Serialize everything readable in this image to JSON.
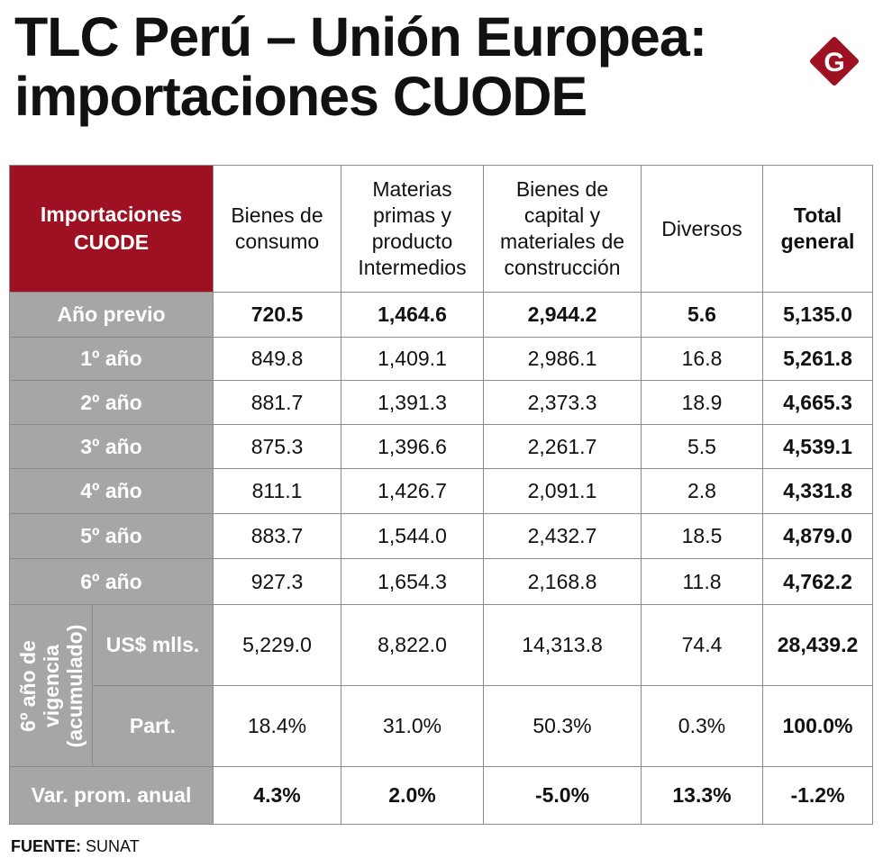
{
  "title": {
    "line1": "TLC Perú – Unión Europea:",
    "line2": "importaciones CUODE"
  },
  "logo": {
    "letter": "G",
    "color": "#9e1122",
    "icon": "brand-g-diamond-icon"
  },
  "colors": {
    "header_red": "#9e1122",
    "row_gray": "#a6a6a6",
    "border": "#8a8a8a"
  },
  "table": {
    "corner_label": [
      "Importaciones",
      "CUODE"
    ],
    "columns": [
      {
        "lines": [
          "Bienes de",
          "consumo"
        ]
      },
      {
        "lines": [
          "Materias",
          "primas y",
          "producto",
          "Intermedios"
        ]
      },
      {
        "lines": [
          "Bienes de",
          "capital y",
          "materiales de",
          "construcción"
        ]
      },
      {
        "lines": [
          "Diversos"
        ]
      },
      {
        "lines": [
          "Total",
          "general"
        ]
      }
    ],
    "rows": [
      {
        "label": "Año previo",
        "values": [
          "720.5",
          "1,464.6",
          "2,944.2",
          "5.6",
          "5,135.0"
        ]
      },
      {
        "label": "1º año",
        "values": [
          "849.8",
          "1,409.1",
          "2,986.1",
          "16.8",
          "5,261.8"
        ]
      },
      {
        "label": "2º año",
        "values": [
          "881.7",
          "1,391.3",
          "2,373.3",
          "18.9",
          "4,665.3"
        ]
      },
      {
        "label": "3º año",
        "values": [
          "875.3",
          "1,396.6",
          "2,261.7",
          "5.5",
          "4,539.1"
        ]
      },
      {
        "label": "4º año",
        "values": [
          "811.1",
          "1,426.7",
          "2,091.1",
          "2.8",
          "4,331.8"
        ]
      },
      {
        "label": "5º año",
        "values": [
          "883.7",
          "1,544.0",
          "2,432.7",
          "18.5",
          "4,879.0"
        ]
      },
      {
        "label": "6º año",
        "values": [
          "927.3",
          "1,654.3",
          "2,168.8",
          "11.8",
          "4,762.2"
        ]
      }
    ],
    "group": {
      "label_lines": [
        "6º año de",
        "vigencia",
        "(acumulado)"
      ],
      "rows": [
        {
          "label": "US$ mlls.",
          "values": [
            "5,229.0",
            "8,822.0",
            "14,313.8",
            "74.4",
            "28,439.2"
          ]
        },
        {
          "label": "Part.",
          "values": [
            "18.4%",
            "31.0%",
            "50.3%",
            "0.3%",
            "100.0%"
          ]
        }
      ]
    },
    "footer_row": {
      "label": "Var. prom. anual",
      "values": [
        "4.3%",
        "2.0%",
        "-5.0%",
        "13.3%",
        "-1.2%"
      ]
    }
  },
  "source": {
    "label": "FUENTE:",
    "value": "SUNAT"
  }
}
